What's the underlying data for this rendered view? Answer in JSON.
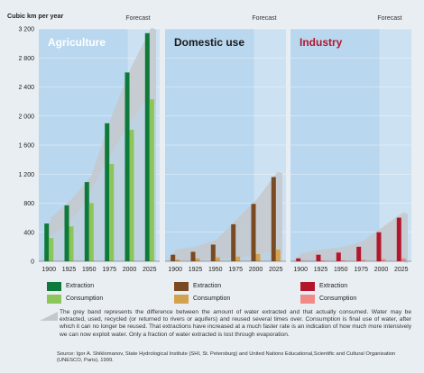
{
  "colors": {
    "background": "#e9eef2",
    "panel_blue": "#b9d7ee",
    "forecast_blue": "#cfe3f2",
    "band_grey": "#c4c8cb",
    "agri_extraction": "#0e7a3a",
    "agri_consumption": "#8cc65a",
    "dom_extraction": "#7a4a22",
    "dom_consumption": "#d2a24f",
    "ind_extraction": "#b3162b",
    "ind_consumption": "#f08a86"
  },
  "legend": {
    "extraction_label": "Extraction",
    "consumption_label": "Consumption"
  },
  "note": "The grey band represents the difference between the amount of water extracted and that actually consumed. Water may be extracted, used, recycled (or returned to rivers or aquifers) and reused several times over. Consumption is final use of water, after which it can no longer be reused. That extractions have increased at a much faster rate is an indication of how much more intensively we can now exploit water. Only a fraction of water extracted is lost through evaporation.",
  "source": "Source: Igor A. Shiklomanov, State Hydrological Institute (SHI, St. Petersburg) and United Nations Educational,Scientific and Cultural Organisation (UNESCO, Paris), 1999.",
  "chart_data": {
    "type": "bar",
    "ylabel": "Cubic km per year",
    "ylim": [
      0,
      3200
    ],
    "yticks": [
      "0",
      "400",
      "800",
      "1 200",
      "1 600",
      "2 000",
      "2 400",
      "2 800",
      "3 200"
    ],
    "ytick_values": [
      0,
      400,
      800,
      1200,
      1600,
      2000,
      2400,
      2800,
      3200
    ],
    "categories": [
      "1900",
      "1925",
      "1950",
      "1975",
      "2000",
      "2025"
    ],
    "forecast_label": "Forecast",
    "panels": [
      {
        "title": "Agriculture",
        "series": [
          {
            "name": "Extraction",
            "values": [
              520,
              770,
              1090,
              1900,
              2600,
              3140
            ]
          },
          {
            "name": "Consumption",
            "values": [
              320,
              480,
              800,
              1340,
              1810,
              2230
            ]
          }
        ]
      },
      {
        "title": "Domestic use",
        "series": [
          {
            "name": "Extraction",
            "values": [
              90,
              130,
              230,
              510,
              790,
              1160
            ]
          },
          {
            "name": "Consumption",
            "values": [
              25,
              40,
              55,
              65,
              100,
              160
            ]
          }
        ]
      },
      {
        "title": "Industry",
        "series": [
          {
            "name": "Extraction",
            "values": [
              40,
              90,
              120,
              200,
              400,
              600
            ]
          },
          {
            "name": "Consumption",
            "values": [
              8,
              12,
              15,
              20,
              30,
              40
            ]
          }
        ]
      }
    ]
  }
}
